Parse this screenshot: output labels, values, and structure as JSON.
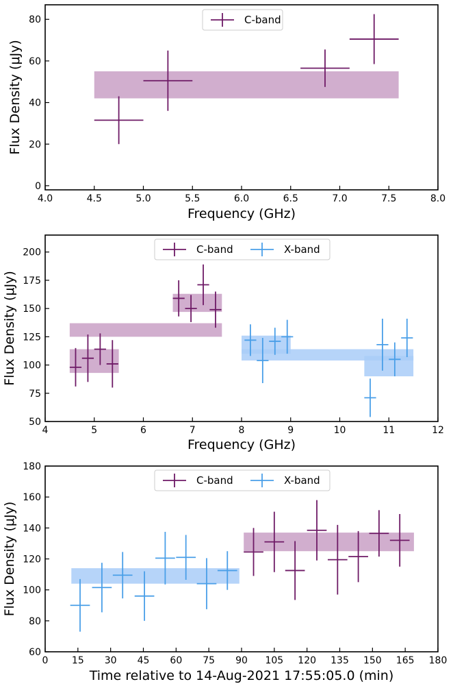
{
  "colors": {
    "cband": "#6e1a66",
    "xband": "#4a9fe8",
    "cband_fill": "#c9a0c6",
    "xband_fill": "#a9cdf8"
  },
  "chart_data": [
    {
      "type": "scatter",
      "xlabel": "Frequency (GHz)",
      "ylabel": "Flux Density (μJy)",
      "xlim": [
        4.0,
        8.0
      ],
      "ylim": [
        -2,
        87
      ],
      "xticks": [
        4.0,
        4.5,
        5.0,
        5.5,
        6.0,
        6.5,
        7.0,
        7.5,
        8.0
      ],
      "xtick_labels": [
        "4.0",
        "4.5",
        "5.0",
        "5.5",
        "6.0",
        "6.5",
        "7.0",
        "7.5",
        "8.0"
      ],
      "yticks": [
        0,
        20,
        40,
        60,
        80
      ],
      "ytick_labels": [
        "0",
        "20",
        "40",
        "60",
        "80"
      ],
      "legend": {
        "placement": "top-center",
        "entries": [
          "C-band"
        ]
      },
      "bands": [
        {
          "series": "C-band",
          "x": [
            4.5,
            7.6
          ],
          "y": [
            42,
            55
          ]
        }
      ],
      "series": [
        {
          "name": "C-band",
          "points": [
            {
              "x": 4.75,
              "y": 31.5,
              "xerr": 0.25,
              "yerr": 11.5
            },
            {
              "x": 5.25,
              "y": 50.5,
              "xerr": 0.25,
              "yerr": 14.5
            },
            {
              "x": 6.85,
              "y": 56.5,
              "xerr": 0.25,
              "yerr": 9.0
            },
            {
              "x": 7.35,
              "y": 70.5,
              "xerr": 0.25,
              "yerr": 12.0
            }
          ]
        }
      ]
    },
    {
      "type": "scatter",
      "xlabel": "Frequency (GHz)",
      "ylabel": "Flux Density (μJy)",
      "xlim": [
        4,
        12
      ],
      "ylim": [
        50,
        215
      ],
      "xticks": [
        4,
        5,
        6,
        7,
        8,
        9,
        10,
        11,
        12
      ],
      "xtick_labels": [
        "4",
        "5",
        "6",
        "7",
        "8",
        "9",
        "10",
        "11",
        "12"
      ],
      "yticks": [
        50,
        75,
        100,
        125,
        150,
        175,
        200
      ],
      "ytick_labels": [
        "50",
        "75",
        "100",
        "125",
        "150",
        "175",
        "200"
      ],
      "legend": {
        "placement": "top-center",
        "entries": [
          "C-band",
          "X-band"
        ]
      },
      "bands": [
        {
          "series": "C-band",
          "x": [
            4.5,
            7.6
          ],
          "y": [
            125,
            137
          ]
        },
        {
          "series": "C-band",
          "x": [
            4.5,
            5.5
          ],
          "y": [
            93,
            114
          ]
        },
        {
          "series": "C-band",
          "x": [
            6.6,
            7.6
          ],
          "y": [
            147,
            163
          ]
        },
        {
          "series": "X-band",
          "x": [
            8.0,
            11.5
          ],
          "y": [
            104,
            114
          ]
        },
        {
          "series": "X-band",
          "x": [
            8.0,
            9.0
          ],
          "y": [
            110,
            126
          ]
        },
        {
          "series": "X-band",
          "x": [
            10.5,
            11.5
          ],
          "y": [
            90,
            108
          ]
        }
      ],
      "series": [
        {
          "name": "C-band",
          "points": [
            {
              "x": 4.62,
              "y": 98,
              "xerr": 0.12,
              "yerr": 17
            },
            {
              "x": 4.87,
              "y": 106,
              "xerr": 0.12,
              "yerr": 21
            },
            {
              "x": 5.12,
              "y": 114,
              "xerr": 0.12,
              "yerr": 14
            },
            {
              "x": 5.37,
              "y": 101,
              "xerr": 0.12,
              "yerr": 21
            },
            {
              "x": 6.72,
              "y": 159,
              "xerr": 0.12,
              "yerr": 16
            },
            {
              "x": 6.97,
              "y": 150,
              "xerr": 0.12,
              "yerr": 12
            },
            {
              "x": 7.22,
              "y": 171,
              "xerr": 0.12,
              "yerr": 18
            },
            {
              "x": 7.47,
              "y": 149,
              "xerr": 0.12,
              "yerr": 16
            }
          ]
        },
        {
          "name": "X-band",
          "points": [
            {
              "x": 8.18,
              "y": 122,
              "xerr": 0.12,
              "yerr": 14
            },
            {
              "x": 8.43,
              "y": 104,
              "xerr": 0.12,
              "yerr": 20
            },
            {
              "x": 8.68,
              "y": 121,
              "xerr": 0.12,
              "yerr": 12
            },
            {
              "x": 8.93,
              "y": 125,
              "xerr": 0.12,
              "yerr": 15
            },
            {
              "x": 10.62,
              "y": 71,
              "xerr": 0.12,
              "yerr": 17
            },
            {
              "x": 10.87,
              "y": 118,
              "xerr": 0.12,
              "yerr": 23
            },
            {
              "x": 11.12,
              "y": 105,
              "xerr": 0.12,
              "yerr": 15
            },
            {
              "x": 11.37,
              "y": 124,
              "xerr": 0.12,
              "yerr": 17
            }
          ]
        }
      ]
    },
    {
      "type": "scatter",
      "xlabel": "Time relative to 14-Aug-2021 17:55:05.0 (min)",
      "ylabel": "Flux Density (μJy)",
      "xlim": [
        0,
        180
      ],
      "ylim": [
        60,
        180
      ],
      "xticks": [
        0,
        15,
        30,
        45,
        60,
        75,
        90,
        105,
        120,
        135,
        150,
        165,
        180
      ],
      "xtick_labels": [
        "0",
        "15",
        "30",
        "45",
        "60",
        "75",
        "90",
        "105",
        "120",
        "135",
        "150",
        "165",
        "180"
      ],
      "yticks": [
        60,
        80,
        100,
        120,
        140,
        160,
        180
      ],
      "ytick_labels": [
        "60",
        "80",
        "100",
        "120",
        "140",
        "160",
        "180"
      ],
      "legend": {
        "placement": "top-center",
        "entries": [
          "C-band",
          "X-band"
        ]
      },
      "bands": [
        {
          "series": "X-band",
          "x": [
            12,
            89
          ],
          "y": [
            104,
            114
          ]
        },
        {
          "series": "C-band",
          "x": [
            91,
            169
          ],
          "y": [
            125,
            137
          ]
        }
      ],
      "series": [
        {
          "name": "X-band",
          "points": [
            {
              "x": 16,
              "y": 90,
              "xerr": 4.5,
              "yerr": 17
            },
            {
              "x": 26,
              "y": 101.5,
              "xerr": 4.5,
              "yerr": 16
            },
            {
              "x": 35.5,
              "y": 109.5,
              "xerr": 4.5,
              "yerr": 15
            },
            {
              "x": 45.5,
              "y": 96,
              "xerr": 4.5,
              "yerr": 16
            },
            {
              "x": 55,
              "y": 120.5,
              "xerr": 4.5,
              "yerr": 17
            },
            {
              "x": 64.5,
              "y": 121,
              "xerr": 4.5,
              "yerr": 14.5
            },
            {
              "x": 74,
              "y": 104,
              "xerr": 4.5,
              "yerr": 16.5
            },
            {
              "x": 83.5,
              "y": 112.5,
              "xerr": 4.5,
              "yerr": 12.5
            }
          ]
        },
        {
          "name": "C-band",
          "points": [
            {
              "x": 95.5,
              "y": 124.5,
              "xerr": 4.5,
              "yerr": 15.5
            },
            {
              "x": 105,
              "y": 131,
              "xerr": 4.5,
              "yerr": 19.5
            },
            {
              "x": 114.5,
              "y": 112.5,
              "xerr": 4.5,
              "yerr": 19
            },
            {
              "x": 124.5,
              "y": 138.5,
              "xerr": 4.5,
              "yerr": 19.5
            },
            {
              "x": 134,
              "y": 119.5,
              "xerr": 4.5,
              "yerr": 22.5
            },
            {
              "x": 143.5,
              "y": 121.5,
              "xerr": 4.5,
              "yerr": 16.5
            },
            {
              "x": 153,
              "y": 136.5,
              "xerr": 4.5,
              "yerr": 15
            },
            {
              "x": 162.5,
              "y": 132,
              "xerr": 4.5,
              "yerr": 17
            }
          ]
        }
      ]
    }
  ]
}
